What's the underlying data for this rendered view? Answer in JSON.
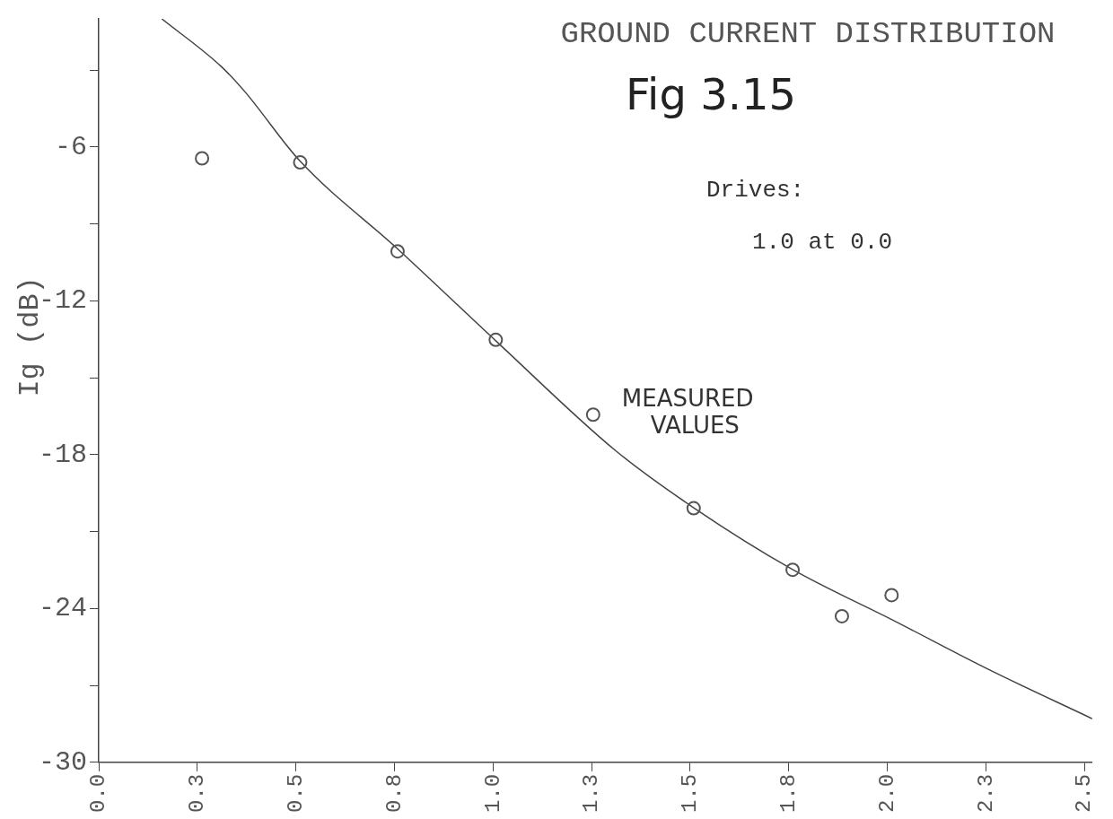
{
  "chart_data": {
    "type": "scatter",
    "title": "GROUND CURRENT DISTRIBUTION",
    "subtitle": "Fig 3.15",
    "ylabel": "Ig (dB)",
    "annotations": [
      "Drives:",
      "1.0 at 0.0",
      {
        "text": "MEASURED VALUES",
        "x": 1.254,
        "y": -16.44
      }
    ],
    "xlim": [
      0,
      2.52
    ],
    "ylim": [
      -30,
      -1
    ],
    "xticks": [
      {
        "value": 0,
        "label": "0.0"
      },
      {
        "value": 0.25,
        "label": "0.3"
      },
      {
        "value": 0.5,
        "label": "0.5"
      },
      {
        "value": 0.75,
        "label": "0.8"
      },
      {
        "value": 1.0,
        "label": "1.0"
      },
      {
        "value": 1.25,
        "label": "1.3"
      },
      {
        "value": 1.5,
        "label": "1.5"
      },
      {
        "value": 1.75,
        "label": "1.8"
      },
      {
        "value": 2.0,
        "label": "2.0"
      },
      {
        "value": 2.25,
        "label": "2.3"
      },
      {
        "value": 2.5,
        "label": "2.5"
      }
    ],
    "yticks": [
      -30,
      {
        "value": -27,
        "label": null
      },
      -24,
      {
        "value": -21,
        "label": null
      },
      -18,
      {
        "value": -15,
        "label": null
      },
      -12,
      {
        "value": -9,
        "label": null
      },
      -6,
      {
        "value": -3,
        "label": null
      }
    ],
    "grid": false,
    "series": [
      {
        "type": "scatter",
        "marker": "circle",
        "color": "#555555",
        "x": [
          0.262,
          0.511,
          0.758,
          1.007,
          1.254,
          1.509,
          1.76,
          1.885,
          2.011
        ],
        "values": [
          -6.44,
          -6.6,
          -10.07,
          -13.52,
          -16.44,
          -20.09,
          -22.49,
          -24.3,
          -23.48
        ]
      },
      {
        "type": "line",
        "marker": "none",
        "color": "#444444",
        "x": [
          0.16,
          0.31,
          0.37,
          0.51,
          0.76,
          1.01,
          1.31,
          1.51,
          1.76,
          2.02,
          2.26,
          2.52
        ],
        "values": [
          -1.0,
          -2.85,
          -3.83,
          -6.54,
          -10.0,
          -13.6,
          -17.83,
          -20.08,
          -22.48,
          -24.5,
          -26.4,
          -28.3
        ]
      }
    ]
  }
}
